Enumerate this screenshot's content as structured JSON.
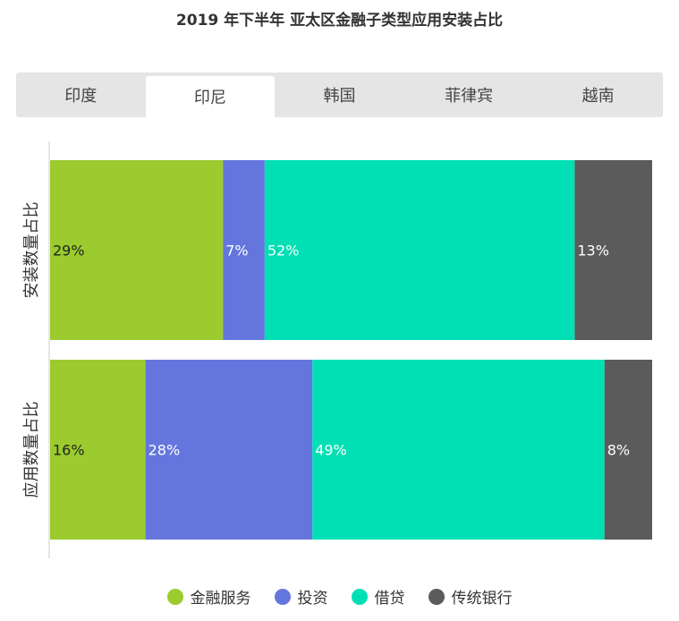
{
  "title": "2019 年下半年 亚太区金融子类型应用安装占比",
  "tabs": [
    {
      "label": "印度",
      "active": false
    },
    {
      "label": "印尼",
      "active": true
    },
    {
      "label": "韩国",
      "active": false
    },
    {
      "label": "菲律宾",
      "active": false
    },
    {
      "label": "越南",
      "active": false
    }
  ],
  "colors": {
    "金融服务": "#9bcb2e",
    "投资": "#6476de",
    "借贷": "#00e0b4",
    "传统银行": "#5b5b5b"
  },
  "chart_data": {
    "type": "bar",
    "stacked": "percent",
    "orientation": "horizontal",
    "categories": [
      "安装数量占比",
      "应用数量占比"
    ],
    "series": [
      {
        "name": "金融服务",
        "values": [
          29,
          16
        ],
        "labels": [
          "29%",
          "16%"
        ]
      },
      {
        "name": "投资",
        "values": [
          7,
          28
        ],
        "labels": [
          "7%",
          "28%"
        ]
      },
      {
        "name": "借贷",
        "values": [
          52,
          49
        ],
        "labels": [
          "52%",
          "49%"
        ]
      },
      {
        "name": "传统银行",
        "values": [
          13,
          8
        ],
        "labels": [
          "13%",
          "8%"
        ]
      }
    ],
    "legend_position": "bottom",
    "grid": false
  }
}
